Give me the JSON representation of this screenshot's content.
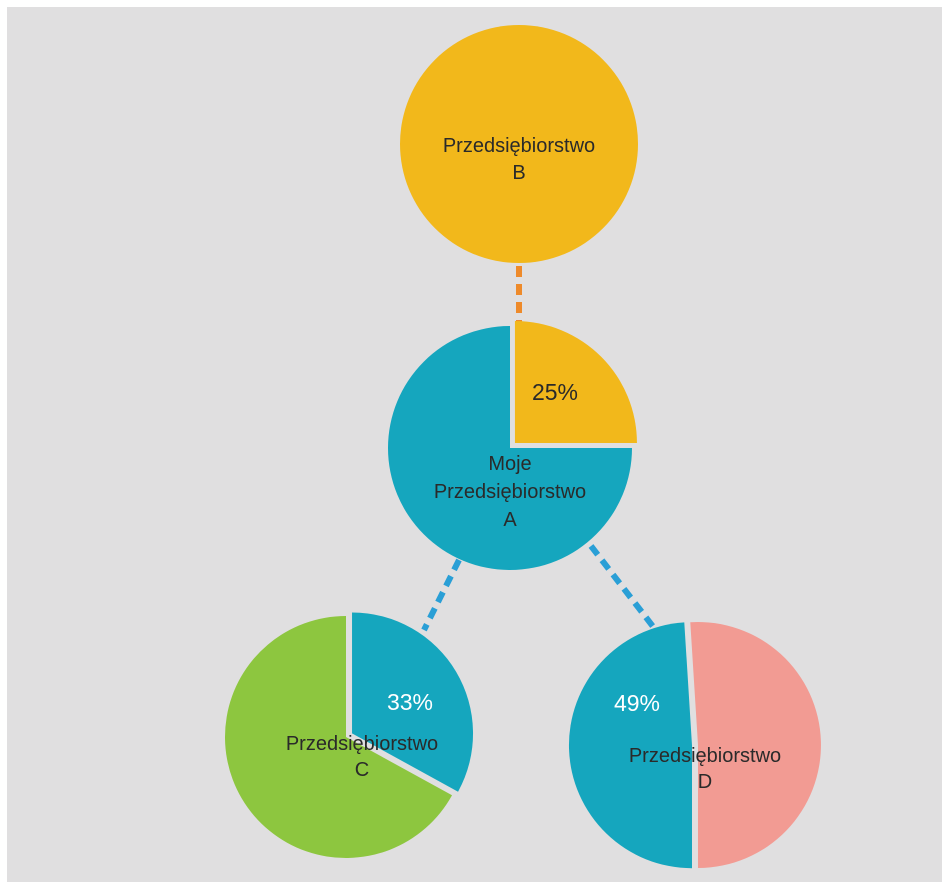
{
  "colors": {
    "panel_bg": "#e0dfe0",
    "yellow": "#f2b81b",
    "teal": "#15a6be",
    "green": "#8dc63f",
    "pink": "#f29b93",
    "connector_orange": "#ee8a2a",
    "connector_blue": "#2a9fd6",
    "text_dark": "#2a2a2a",
    "text_light": "#ffffff"
  },
  "nodes": {
    "b": {
      "label_line1": "Przedsiębiorstwo",
      "label_line2": "B"
    },
    "a": {
      "label_line1": "Moje",
      "label_line2": "Przedsiębiorstwo",
      "label_line3": "A",
      "share_label": "25%",
      "share_fraction": 0.25
    },
    "c": {
      "label_line1": "Przedsiębiorstwo",
      "label_line2": "C",
      "share_label": "33%",
      "share_fraction": 0.33
    },
    "d": {
      "label_line1": "Przedsiębiorstwo",
      "label_line2": "D",
      "share_label": "49%",
      "share_fraction": 0.49
    }
  }
}
